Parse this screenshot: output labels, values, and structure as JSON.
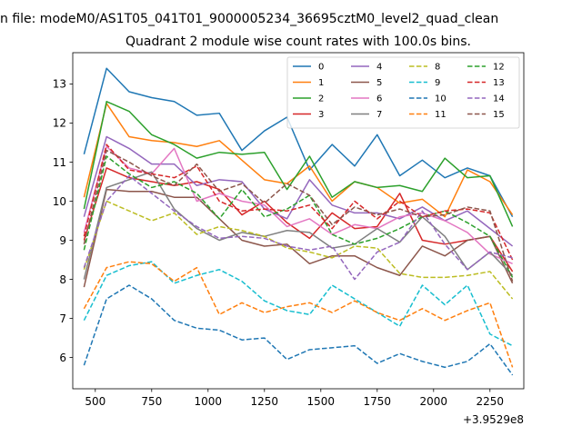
{
  "chart_data": {
    "type": "line",
    "suptitle": "n file: modeM0/AS1T05_041T01_9000005234_36695cztM0_level2_quad_clean",
    "title": "Quadrant 2 module wise count rates with 100.0s bins.",
    "xlabel": "",
    "ylabel": "",
    "x_offset_label": "+3.9529e8",
    "xlim": [
      400,
      2400
    ],
    "ylim": [
      5.2,
      13.8
    ],
    "xticks": [
      500,
      750,
      1000,
      1250,
      1500,
      1750,
      2000,
      2250
    ],
    "yticks": [
      6,
      7,
      8,
      9,
      10,
      11,
      12,
      13
    ],
    "x": [
      450,
      550,
      650,
      750,
      850,
      950,
      1050,
      1150,
      1250,
      1350,
      1450,
      1550,
      1650,
      1750,
      1850,
      1950,
      2050,
      2150,
      2250,
      2350
    ],
    "legend_position": "top-right",
    "series": [
      {
        "name": "0",
        "color": "#1f77b4",
        "dash": "solid",
        "values": [
          11.2,
          13.4,
          12.8,
          12.65,
          12.55,
          12.2,
          12.25,
          11.3,
          11.8,
          12.15,
          10.8,
          11.45,
          10.9,
          11.7,
          10.65,
          11.05,
          10.6,
          10.85,
          10.65,
          9.6
        ]
      },
      {
        "name": "1",
        "color": "#ff7f0e",
        "dash": "solid",
        "values": [
          10.1,
          12.5,
          11.65,
          11.55,
          11.5,
          11.4,
          11.55,
          11.05,
          10.55,
          10.45,
          10.9,
          10.0,
          10.5,
          10.35,
          9.95,
          10.05,
          9.6,
          10.8,
          10.5,
          9.65
        ]
      },
      {
        "name": "2",
        "color": "#2ca02c",
        "dash": "solid",
        "values": [
          9.8,
          12.55,
          12.3,
          11.7,
          11.45,
          11.1,
          11.25,
          11.2,
          11.25,
          10.3,
          11.15,
          10.1,
          10.5,
          10.35,
          10.4,
          10.25,
          11.1,
          10.6,
          10.65,
          9.35
        ]
      },
      {
        "name": "3",
        "color": "#d62728",
        "dash": "solid",
        "values": [
          9.0,
          10.85,
          10.6,
          10.5,
          10.4,
          10.5,
          10.3,
          9.65,
          10.0,
          9.45,
          9.05,
          9.7,
          9.3,
          9.35,
          10.2,
          9.0,
          8.9,
          9.0,
          9.1,
          8.2
        ]
      },
      {
        "name": "4",
        "color": "#9467bd",
        "dash": "solid",
        "values": [
          9.6,
          11.65,
          11.35,
          10.95,
          10.95,
          10.4,
          10.55,
          10.5,
          9.8,
          9.55,
          10.55,
          9.9,
          9.7,
          9.7,
          9.55,
          9.85,
          9.5,
          9.75,
          9.3,
          8.85
        ]
      },
      {
        "name": "5",
        "color": "#8c564b",
        "dash": "solid",
        "values": [
          7.8,
          10.3,
          10.25,
          10.25,
          10.1,
          10.1,
          9.55,
          9.0,
          8.85,
          8.9,
          8.4,
          8.6,
          8.6,
          8.3,
          8.1,
          8.85,
          8.6,
          9.0,
          9.1,
          7.9
        ]
      },
      {
        "name": "6",
        "color": "#e377c2",
        "dash": "solid",
        "values": [
          9.2,
          11.4,
          10.85,
          10.7,
          11.35,
          10.0,
          10.2,
          10.0,
          9.9,
          9.35,
          9.55,
          9.15,
          9.4,
          9.3,
          9.6,
          9.7,
          9.5,
          9.2,
          8.65,
          8.4
        ]
      },
      {
        "name": "7",
        "color": "#7f7f7f",
        "dash": "solid",
        "values": [
          8.0,
          10.35,
          10.55,
          10.75,
          9.8,
          9.3,
          9.0,
          9.2,
          9.1,
          9.25,
          9.2,
          8.8,
          8.9,
          9.3,
          8.95,
          9.6,
          9.1,
          8.25,
          8.7,
          8.1
        ]
      },
      {
        "name": "8",
        "color": "#bcbd22",
        "dash": "dashed",
        "values": [
          8.25,
          10.0,
          9.75,
          9.5,
          9.7,
          9.15,
          9.35,
          9.25,
          9.1,
          8.8,
          8.7,
          8.55,
          8.85,
          8.8,
          8.15,
          8.05,
          8.05,
          8.1,
          8.2,
          7.5
        ]
      },
      {
        "name": "9",
        "color": "#17becf",
        "dash": "dashed",
        "values": [
          6.95,
          8.1,
          8.35,
          8.45,
          7.9,
          8.1,
          8.25,
          7.95,
          7.45,
          7.2,
          7.1,
          7.85,
          7.5,
          7.15,
          6.8,
          7.85,
          7.35,
          7.85,
          6.6,
          6.3
        ]
      },
      {
        "name": "10",
        "color": "#1f77b4",
        "dash": "dashed",
        "values": [
          5.8,
          7.5,
          7.85,
          7.5,
          6.95,
          6.75,
          6.7,
          6.45,
          6.5,
          5.95,
          6.2,
          6.25,
          6.3,
          5.85,
          6.1,
          5.9,
          5.75,
          5.9,
          6.35,
          5.55
        ]
      },
      {
        "name": "11",
        "color": "#ff7f0e",
        "dash": "dashed",
        "values": [
          7.25,
          8.3,
          8.45,
          8.4,
          7.95,
          8.3,
          7.1,
          7.4,
          7.15,
          7.3,
          7.4,
          7.15,
          7.45,
          7.15,
          6.95,
          7.25,
          6.95,
          7.2,
          7.4,
          5.75
        ]
      },
      {
        "name": "12",
        "color": "#2ca02c",
        "dash": "dashed",
        "values": [
          8.75,
          11.15,
          10.7,
          10.35,
          10.5,
          10.2,
          9.55,
          10.3,
          9.6,
          9.8,
          10.15,
          9.15,
          8.9,
          9.05,
          9.3,
          9.6,
          9.75,
          9.45,
          9.1,
          8.05
        ]
      },
      {
        "name": "13",
        "color": "#d62728",
        "dash": "dashed",
        "values": [
          9.1,
          11.45,
          10.8,
          10.7,
          10.6,
          10.9,
          10.0,
          9.75,
          9.8,
          9.75,
          9.9,
          9.3,
          10.0,
          9.55,
          10.0,
          9.6,
          9.75,
          9.8,
          9.7,
          8.5
        ]
      },
      {
        "name": "14",
        "color": "#9467bd",
        "dash": "dashed",
        "values": [
          8.3,
          10.0,
          10.65,
          10.2,
          9.75,
          9.35,
          9.05,
          9.1,
          9.05,
          8.85,
          8.75,
          8.85,
          8.0,
          8.7,
          8.95,
          9.75,
          8.9,
          8.25,
          8.7,
          8.55
        ]
      },
      {
        "name": "15",
        "color": "#8c564b",
        "dash": "dashed",
        "values": [
          8.9,
          11.3,
          11.0,
          10.65,
          10.4,
          10.95,
          10.25,
          10.45,
          9.95,
          10.45,
          10.15,
          9.4,
          9.85,
          9.65,
          9.8,
          9.6,
          9.65,
          9.85,
          9.75,
          7.95
        ]
      }
    ]
  }
}
